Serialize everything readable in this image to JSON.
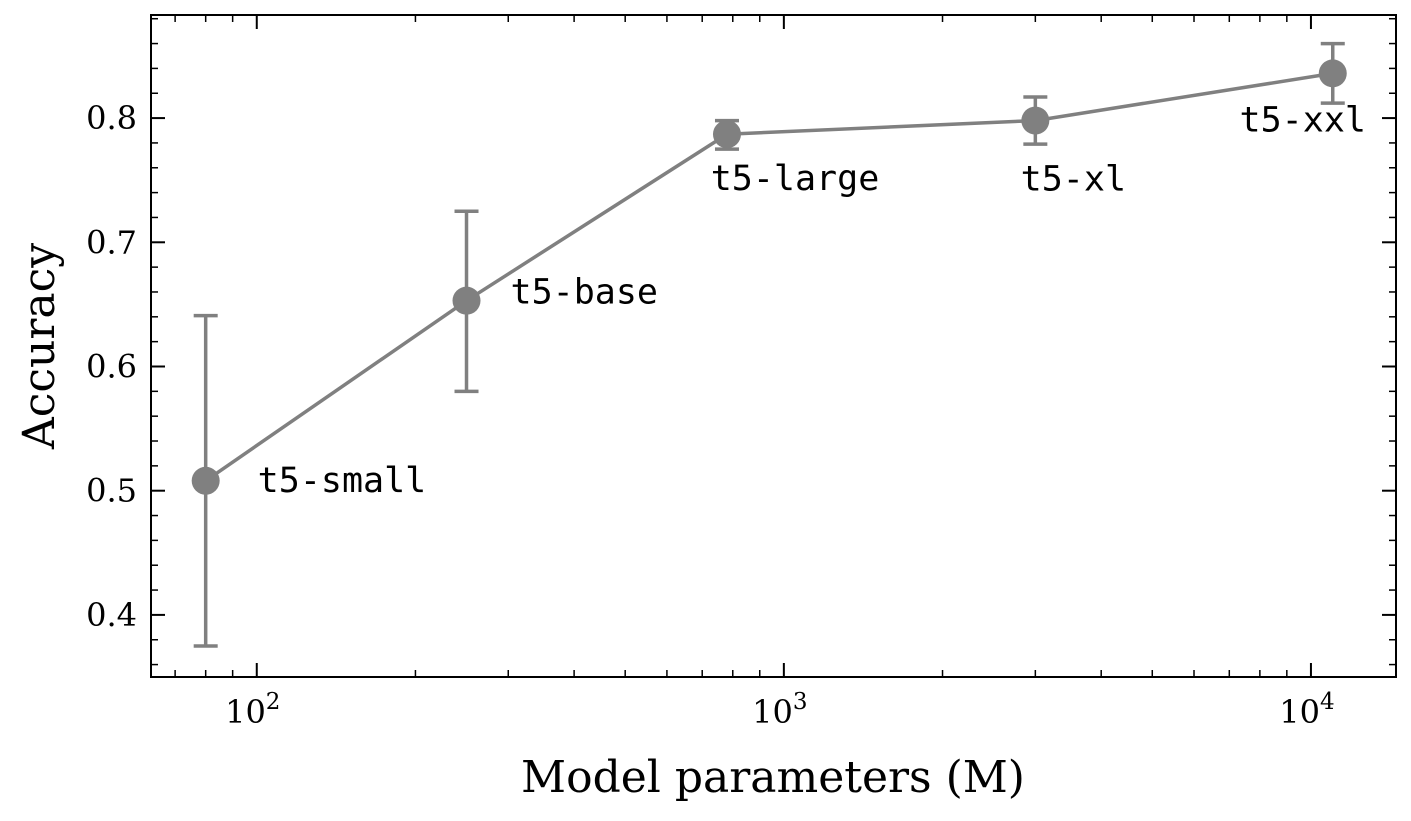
{
  "chart_data": {
    "type": "line",
    "xlabel": "Model parameters (M)",
    "ylabel": "Accuracy",
    "x_scale": "log",
    "xlim": [
      63,
      14500
    ],
    "ylim": [
      0.35,
      0.883
    ],
    "x_ticks": [
      {
        "value": 100,
        "base": "10",
        "exp": "2"
      },
      {
        "value": 1000,
        "base": "10",
        "exp": "3"
      },
      {
        "value": 10000,
        "base": "10",
        "exp": "4"
      }
    ],
    "y_ticks": [
      {
        "value": 0.4,
        "label": "0.4"
      },
      {
        "value": 0.5,
        "label": "0.5"
      },
      {
        "value": 0.6,
        "label": "0.6"
      },
      {
        "value": 0.7,
        "label": "0.7"
      },
      {
        "value": 0.8,
        "label": "0.8"
      }
    ],
    "color": "#808080",
    "grid": false,
    "series": [
      {
        "points": [
          {
            "label": "t5-small",
            "x": 80,
            "y": 0.508,
            "err_low": 0.375,
            "err_high": 0.641
          },
          {
            "label": "t5-base",
            "x": 250,
            "y": 0.653,
            "err_low": 0.58,
            "err_high": 0.725
          },
          {
            "label": "t5-large",
            "x": 780,
            "y": 0.787,
            "err_low": 0.775,
            "err_high": 0.798
          },
          {
            "label": "t5-xl",
            "x": 3000,
            "y": 0.798,
            "err_low": 0.779,
            "err_high": 0.817
          },
          {
            "label": "t5-xxl",
            "x": 11000,
            "y": 0.836,
            "err_low": 0.812,
            "err_high": 0.86
          }
        ]
      }
    ]
  }
}
